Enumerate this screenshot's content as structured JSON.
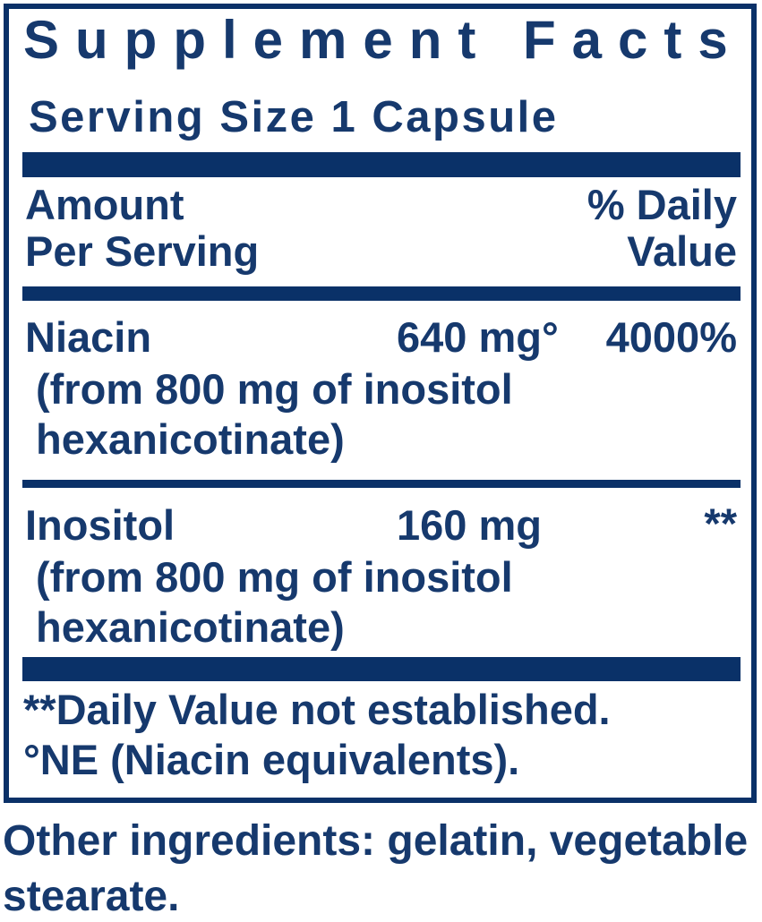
{
  "colors": {
    "navy_bar": "#0a3168",
    "navy_text": "#16396d",
    "background": "#ffffff"
  },
  "label": {
    "title": "Supplement Facts",
    "serving_size": "Serving Size 1 Capsule",
    "header": {
      "amount_line1": "Amount",
      "amount_line2": "Per Serving",
      "daily_value_line1": "% Daily",
      "daily_value_line2": "Value"
    },
    "rows": [
      {
        "name": "Niacin",
        "amount": "640 mg°",
        "daily_value": "4000%",
        "detail_line1": "(from 800 mg of inositol",
        "detail_line2": "hexanicotinate)"
      },
      {
        "name": "Inositol",
        "amount": "160 mg",
        "daily_value": "**",
        "detail_line1": "(from 800 mg of inositol",
        "detail_line2": "hexanicotinate)"
      }
    ],
    "footnotes": [
      "**Daily Value not established.",
      "°NE (Niacin equivalents)."
    ],
    "other_ingredients_line1": "Other ingredients: gelatin, vegetable",
    "other_ingredients_line2": "stearate."
  }
}
